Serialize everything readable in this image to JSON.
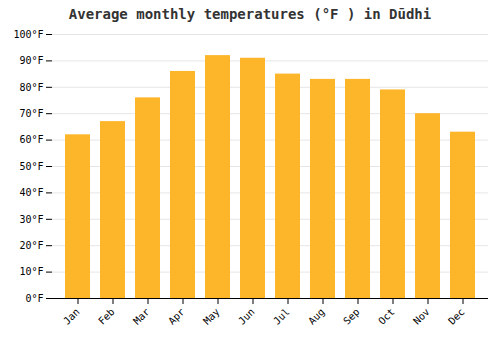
{
  "chart_data": {
    "type": "bar",
    "title": "Average monthly temperatures (°F ) in Dūdhi",
    "categories": [
      "Jan",
      "Feb",
      "Mar",
      "Apr",
      "May",
      "Jun",
      "Jul",
      "Aug",
      "Sep",
      "Oct",
      "Nov",
      "Dec"
    ],
    "values": [
      62,
      67,
      76,
      86,
      92,
      91,
      85,
      83,
      83,
      79,
      70,
      63
    ],
    "color": "#FDB52A",
    "ylim": [
      0,
      100
    ],
    "yticks": [
      {
        "value": 0,
        "label": "0°F"
      },
      {
        "value": 10,
        "label": "10°F"
      },
      {
        "value": 20,
        "label": "20°F"
      },
      {
        "value": 30,
        "label": "30°F"
      },
      {
        "value": 40,
        "label": "40°F"
      },
      {
        "value": 50,
        "label": "50°F"
      },
      {
        "value": 60,
        "label": "60°F"
      },
      {
        "value": 70,
        "label": "70°F"
      },
      {
        "value": 80,
        "label": "80°F"
      },
      {
        "value": 90,
        "label": "90°F"
      },
      {
        "value": 100,
        "label": "100°F"
      }
    ],
    "grid": true
  }
}
